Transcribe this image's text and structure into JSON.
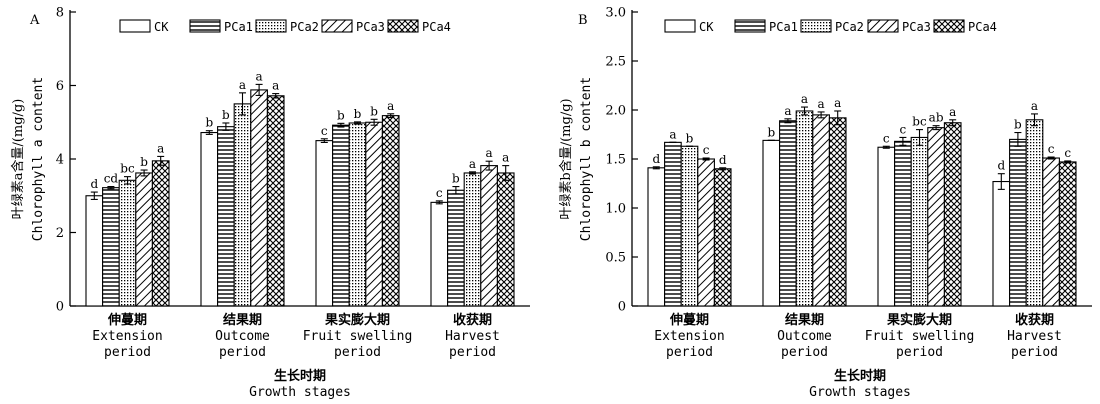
{
  "chart_data": [
    {
      "type": "bar",
      "panel_label": "A",
      "categories": [
        {
          "zh": "伸蔓期",
          "en": [
            "Extension",
            "period"
          ]
        },
        {
          "zh": "结果期",
          "en": [
            "Outcome",
            "period"
          ]
        },
        {
          "zh": "果实膨大期",
          "en": [
            "Fruit swelling",
            "period"
          ]
        },
        {
          "zh": "收获期",
          "en": [
            "Harvest",
            "period"
          ]
        }
      ],
      "series": [
        {
          "name": "CK",
          "values": [
            3.0,
            4.72,
            4.5,
            2.82
          ],
          "errors": [
            0.1,
            0.05,
            0.05,
            0.04
          ],
          "sig": [
            "d",
            "b",
            "c",
            "c"
          ]
        },
        {
          "name": "PCa1",
          "values": [
            3.22,
            4.88,
            4.92,
            3.15
          ],
          "errors": [
            0.03,
            0.1,
            0.05,
            0.1
          ],
          "sig": [
            "cd",
            "b",
            "b",
            "b"
          ]
        },
        {
          "name": "PCa2",
          "values": [
            3.42,
            5.5,
            4.98,
            3.62
          ],
          "errors": [
            0.1,
            0.3,
            0.03,
            0.03
          ],
          "sig": [
            "bc",
            "a",
            "b",
            "a"
          ]
        },
        {
          "name": "PCa3",
          "values": [
            3.62,
            5.88,
            5.0,
            3.82
          ],
          "errors": [
            0.08,
            0.15,
            0.08,
            0.12
          ],
          "sig": [
            "b",
            "a",
            "b",
            "a"
          ]
        },
        {
          "name": "PCa4",
          "values": [
            3.95,
            5.72,
            5.18,
            3.62
          ],
          "errors": [
            0.12,
            0.06,
            0.05,
            0.2
          ],
          "sig": [
            "a",
            "a",
            "a",
            "a"
          ]
        }
      ],
      "ylim": [
        0,
        8
      ],
      "yticks": [
        "0",
        "2",
        "4",
        "6",
        "8"
      ],
      "ylabel": [
        "叶绿素a含量/(mg/g)",
        "Chlorophyll a content"
      ],
      "xlabel": [
        "生长时期",
        "Growth stages"
      ]
    },
    {
      "type": "bar",
      "panel_label": "B",
      "categories": [
        {
          "zh": "伸蔓期",
          "en": [
            "Extension",
            "period"
          ]
        },
        {
          "zh": "结果期",
          "en": [
            "Outcome",
            "period"
          ]
        },
        {
          "zh": "果实膨大期",
          "en": [
            "Fruit swelling",
            "period"
          ]
        },
        {
          "zh": "收获期",
          "en": [
            "Harvest",
            "period"
          ]
        }
      ],
      "series": [
        {
          "name": "CK",
          "values": [
            1.41,
            1.69,
            1.62,
            1.27
          ],
          "errors": [
            0.01,
            0.0,
            0.01,
            0.08
          ],
          "sig": [
            "d",
            "b",
            "c",
            "d"
          ]
        },
        {
          "name": "PCa1",
          "values": [
            1.67,
            1.89,
            1.68,
            1.7
          ],
          "errors": [
            0.0,
            0.02,
            0.04,
            0.07
          ],
          "sig": [
            "a",
            "a",
            "c",
            "b"
          ]
        },
        {
          "name": "PCa2",
          "values": [
            1.63,
            1.99,
            1.72,
            1.9
          ],
          "errors": [
            0.0,
            0.04,
            0.08,
            0.06
          ],
          "sig": [
            "b",
            "a",
            "bc",
            "a"
          ]
        },
        {
          "name": "PCa3",
          "values": [
            1.5,
            1.95,
            1.82,
            1.51
          ],
          "errors": [
            0.01,
            0.03,
            0.02,
            0.01
          ],
          "sig": [
            "c",
            "a",
            "ab",
            "c"
          ]
        },
        {
          "name": "PCa4",
          "values": [
            1.4,
            1.92,
            1.87,
            1.47
          ],
          "errors": [
            0.01,
            0.07,
            0.03,
            0.01
          ],
          "sig": [
            "d",
            "a",
            "a",
            "c"
          ]
        }
      ],
      "ylim": [
        0,
        3.0
      ],
      "yticks": [
        "0",
        "0.5",
        "1.0",
        "1.5",
        "2.0",
        "2.5",
        "3.0"
      ],
      "ylabel": [
        "叶绿素b含量/(mg/g)",
        "Chlorophyll b content"
      ],
      "xlabel": [
        "生长时期",
        "Growth stages"
      ]
    }
  ]
}
